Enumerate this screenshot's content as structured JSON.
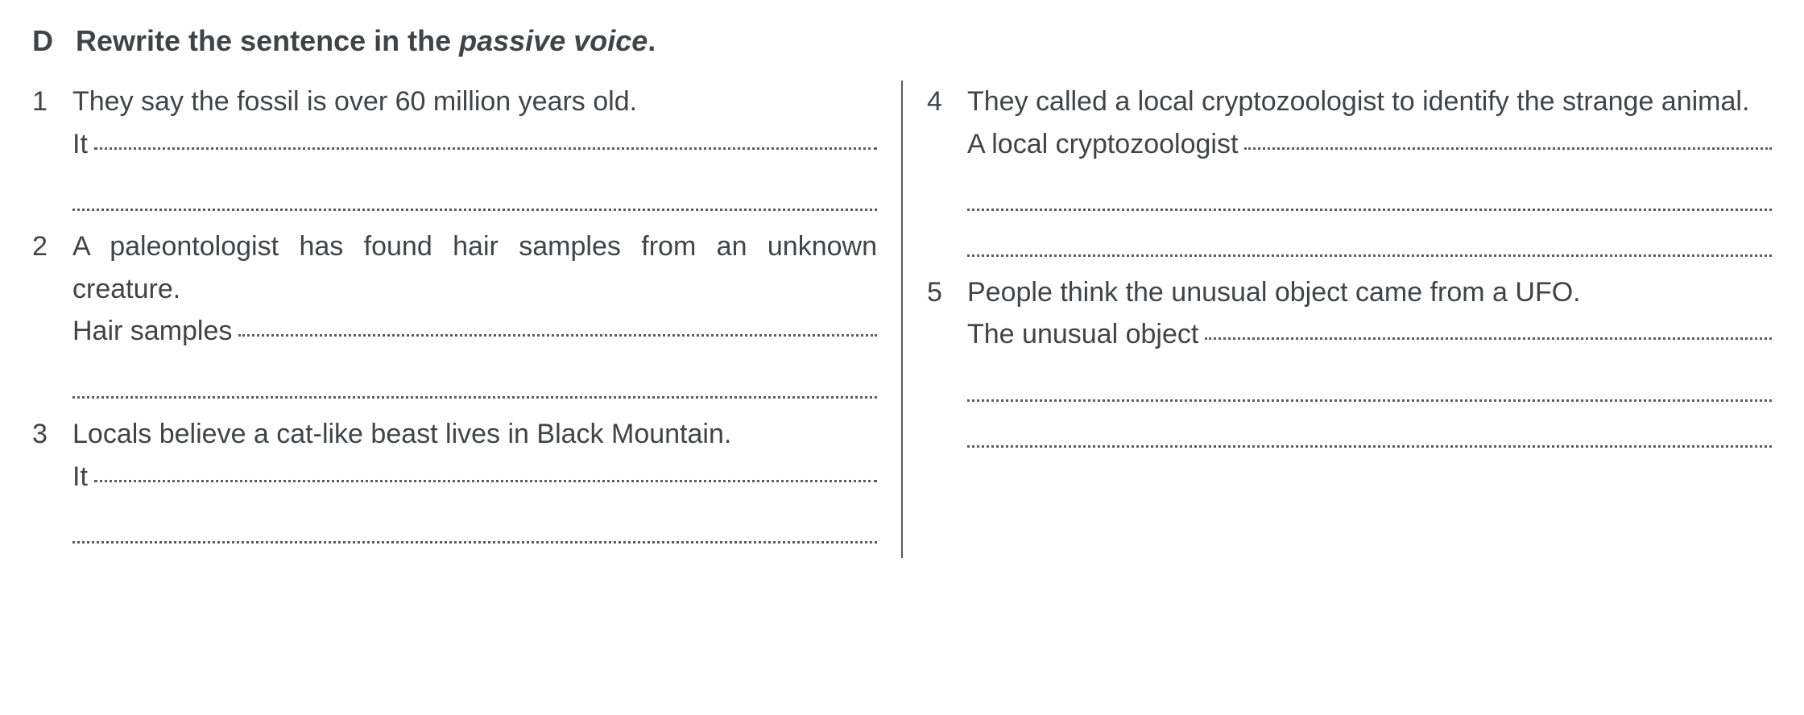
{
  "colors": {
    "text": "#414345",
    "divider": "#5a5c5e",
    "dots": "#5a5c5e",
    "background": "#ffffff"
  },
  "typography": {
    "font_family": "Arial, Helvetica, sans-serif",
    "header_fontsize": 36,
    "body_fontsize": 34,
    "header_weight": "bold",
    "body_weight": 400
  },
  "header": {
    "letter": "D",
    "instruction_prefix": "Rewrite the sentence in the ",
    "instruction_italic": "passive voice",
    "instruction_suffix": "."
  },
  "items": [
    {
      "num": "1",
      "text": "They say the fossil is over 60 million years old.",
      "lead": "It",
      "extra_lines": 1
    },
    {
      "num": "2",
      "text": "A paleontologist has found hair samples from an unknown creature.",
      "lead": "Hair samples",
      "extra_lines": 1
    },
    {
      "num": "3",
      "text": "Locals believe a cat-like beast lives in Black Mountain.",
      "lead": "It",
      "extra_lines": 1
    },
    {
      "num": "4",
      "text": "They called a local cryptozoologist to identify the strange animal.",
      "lead": "A local cryptozoologist",
      "extra_lines": 2
    },
    {
      "num": "5",
      "text": "People think the unusual object came from a UFO.",
      "lead": "The unusual object",
      "extra_lines": 2
    }
  ]
}
